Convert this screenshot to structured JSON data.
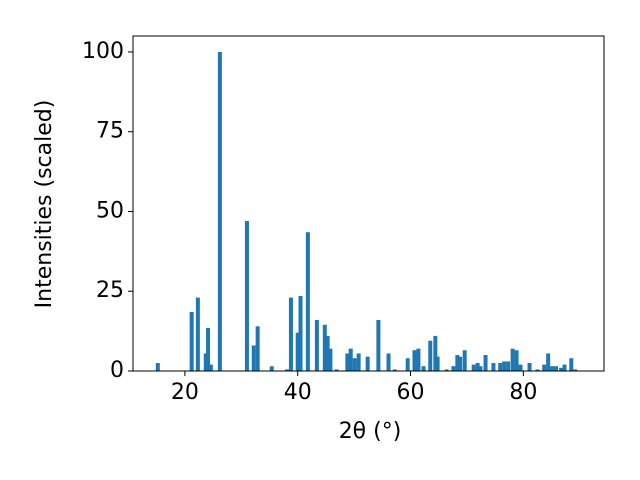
{
  "chart_data": {
    "type": "bar",
    "xlabel": "2θ (°)",
    "ylabel": "Intensities (scaled)",
    "x": [
      15.2,
      21.2,
      22.3,
      23.7,
      24.1,
      24.6,
      26.2,
      31.0,
      32.2,
      32.9,
      35.4,
      38.1,
      38.8,
      40.0,
      40.5,
      41.8,
      43.4,
      44.8,
      45.3,
      45.8,
      46.9,
      48.8,
      49.4,
      50.1,
      50.8,
      52.4,
      54.3,
      56.1,
      57.2,
      59.5,
      60.7,
      61.4,
      62.3,
      63.5,
      64.4,
      64.8,
      66.4,
      67.6,
      68.3,
      68.8,
      69.6,
      71.2,
      71.9,
      72.4,
      73.3,
      74.7,
      75.9,
      76.6,
      77.3,
      78.1,
      78.8,
      79.5,
      81.1,
      82.5,
      83.7,
      84.4,
      85.1,
      85.8,
      86.7,
      87.3,
      88.5,
      89.2
    ],
    "values": [
      2.5,
      18.5,
      23,
      5.5,
      13.5,
      2,
      100,
      47,
      8,
      14,
      1.5,
      0.5,
      23,
      12,
      23.5,
      43.5,
      16,
      14.5,
      11,
      7,
      0.5,
      5.5,
      7,
      4,
      5.5,
      4.5,
      16,
      5.5,
      0.5,
      4,
      6.5,
      7,
      1.5,
      9.5,
      11,
      4.5,
      0.5,
      1.5,
      5,
      4.5,
      6.5,
      2,
      2.5,
      1.5,
      5,
      2.5,
      2.5,
      3,
      3,
      7,
      6.5,
      2,
      2.5,
      0.5,
      2,
      5.5,
      1.5,
      1.5,
      1,
      2,
      4,
      0.5
    ],
    "color": "#1f77b4",
    "xlim": [
      10.8,
      94.3
    ],
    "xticks": [
      20,
      40,
      60,
      80
    ],
    "ylim": [
      0,
      105
    ],
    "yticks": [
      0,
      25,
      50,
      75,
      100
    ]
  }
}
